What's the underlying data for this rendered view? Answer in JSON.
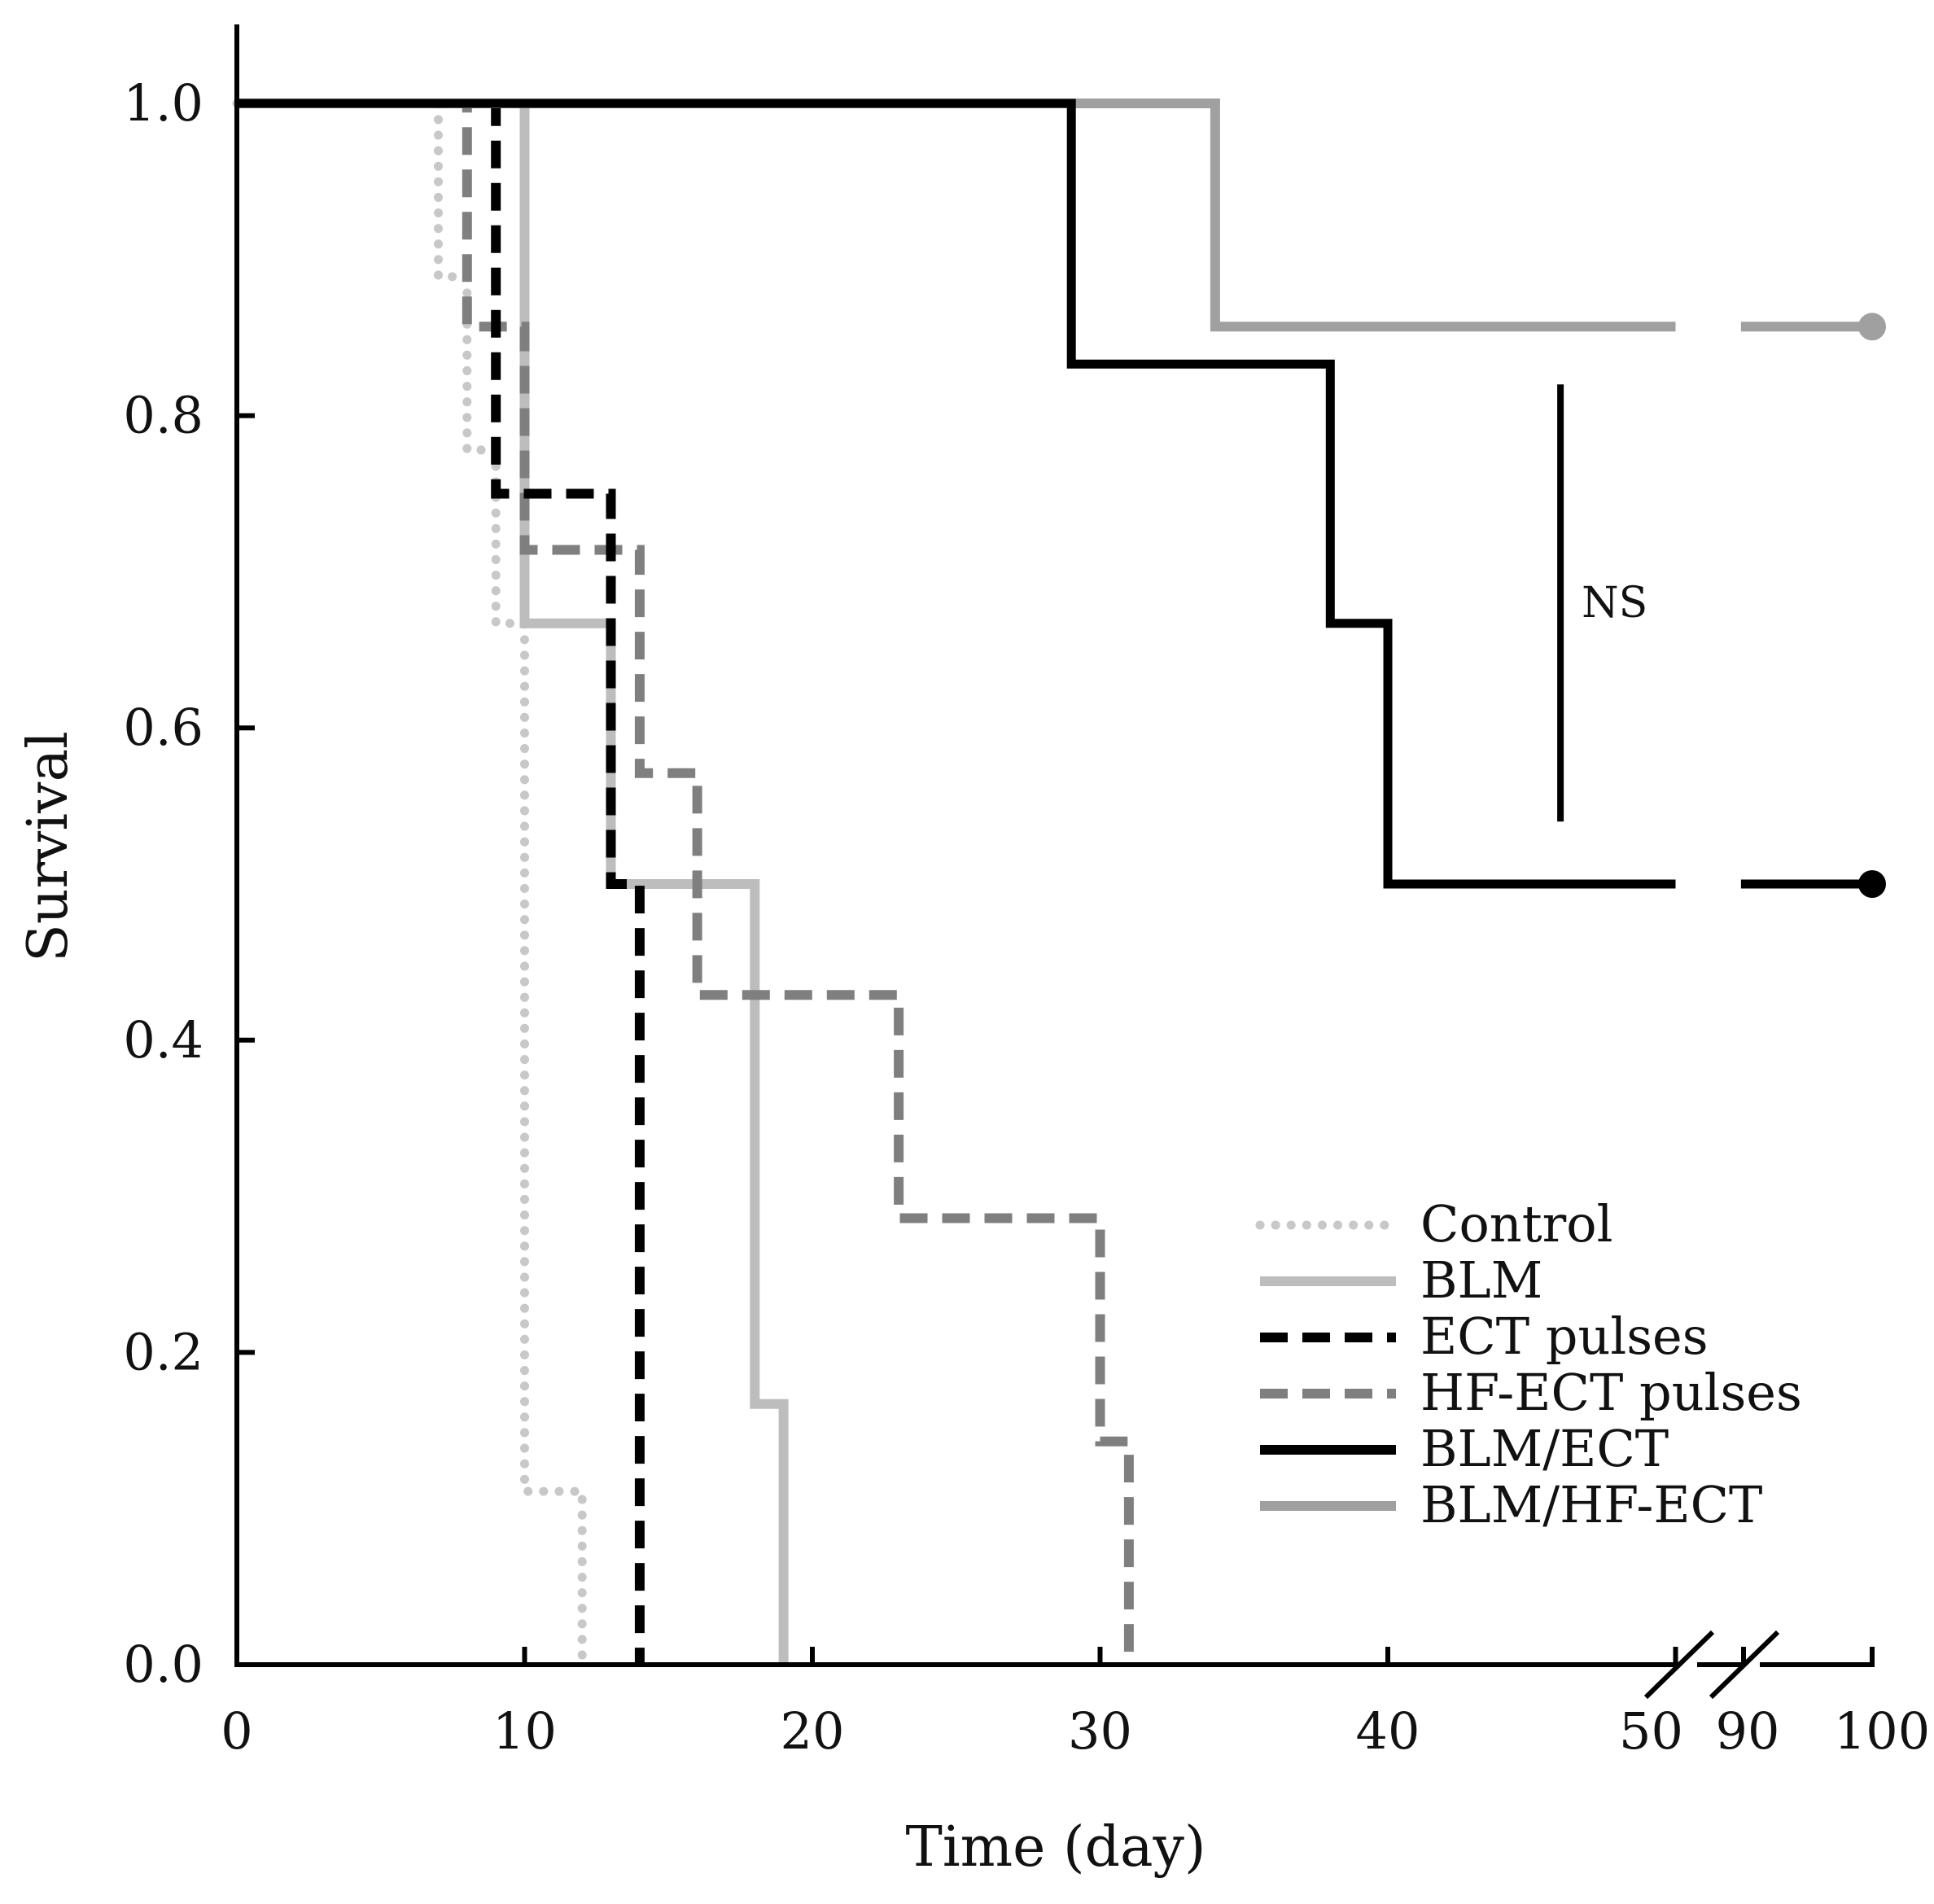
{
  "chart_data": {
    "type": "line",
    "subtype": "kaplan-meier-step",
    "xlabel": "Time (day)",
    "ylabel": "Survival",
    "xlim": [
      0,
      100
    ],
    "ylim": [
      0,
      1
    ],
    "x_break": {
      "between": [
        50,
        90
      ]
    },
    "x_ticks": [
      0,
      10,
      20,
      30,
      40,
      50,
      90,
      100
    ],
    "x_tick_labels": [
      "0",
      "10",
      "20",
      "30",
      "40",
      "50",
      "90",
      "100"
    ],
    "y_ticks": [
      0,
      0.2,
      0.4,
      0.6,
      0.8,
      1.0
    ],
    "y_tick_labels": [
      "0.0",
      "0.2",
      "0.4",
      "0.6",
      "0.8",
      "1.0"
    ],
    "legend_position": "lower-right",
    "series": [
      {
        "name": "Control",
        "color": "#c8c8c8",
        "style": "dotted",
        "steps": [
          [
            0,
            1.0
          ],
          [
            7,
            0.889
          ],
          [
            8,
            0.778
          ],
          [
            9,
            0.667
          ],
          [
            10,
            0.111
          ],
          [
            12,
            0.0
          ]
        ]
      },
      {
        "name": "BLM",
        "color": "#bdbdbd",
        "style": "solid",
        "steps": [
          [
            0,
            1.0
          ],
          [
            10,
            0.667
          ],
          [
            13,
            0.5
          ],
          [
            18,
            0.167
          ],
          [
            19,
            0.0
          ]
        ]
      },
      {
        "name": "ECT pulses",
        "color": "#000000",
        "style": "dashed",
        "steps": [
          [
            0,
            1.0
          ],
          [
            9,
            0.75
          ],
          [
            13,
            0.5
          ],
          [
            14,
            0.0
          ]
        ]
      },
      {
        "name": "HF-ECT pulses",
        "color": "#7f7f7f",
        "style": "dashed",
        "steps": [
          [
            0,
            1.0
          ],
          [
            8,
            0.857
          ],
          [
            10,
            0.714
          ],
          [
            14,
            0.571
          ],
          [
            16,
            0.429
          ],
          [
            23,
            0.286
          ],
          [
            30,
            0.143
          ],
          [
            31,
            0.0
          ]
        ]
      },
      {
        "name": "BLM/ECT",
        "color": "#000000",
        "style": "solid",
        "steps": [
          [
            0,
            1.0
          ],
          [
            29,
            0.833
          ],
          [
            38,
            0.667
          ],
          [
            40,
            0.5
          ],
          [
            100,
            0.5
          ]
        ],
        "censored_end": 100
      },
      {
        "name": "BLM/HF-ECT",
        "color": "#a0a0a0",
        "style": "solid",
        "steps": [
          [
            0,
            1.0
          ],
          [
            34,
            0.857
          ],
          [
            100,
            0.857
          ]
        ],
        "censored_end": 100
      }
    ],
    "annotations": [
      {
        "text": "NS",
        "x": 46,
        "y_range": [
          0.54,
          0.82
        ]
      }
    ]
  }
}
